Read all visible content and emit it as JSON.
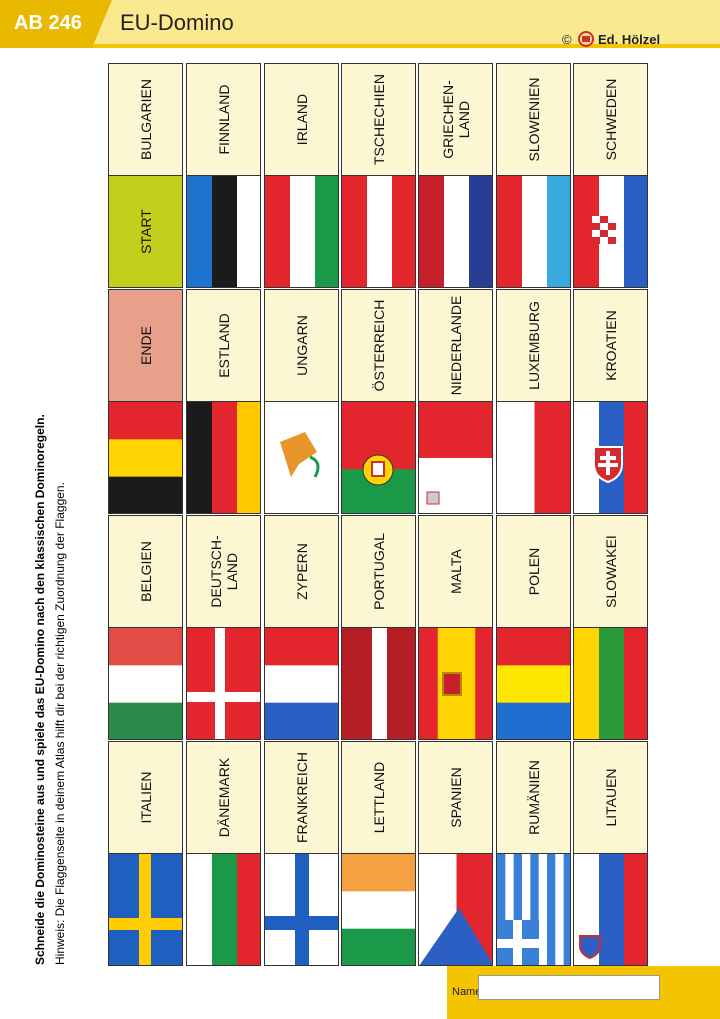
{
  "header": {
    "sheet_number": "AB 246",
    "title": "EU-Domino",
    "copyright": "©",
    "publisher": "Ed. Hölzel"
  },
  "instructions": [
    "Schneide die Dominosteine aus und spiele das EU-Domino nach den klassischen Dominoregeln.",
    "Hinweis: Die Flaggenseite in deinem Atlas hilft dir bei der richtigen Zuordnung der Flaggen."
  ],
  "start": "START",
  "rows": [
    [
      "BULGARIEN",
      "FINNLAND",
      "IRLAND",
      "TSCHECHIEN",
      "GRIECHEN-\nLAND",
      "SLOWENIEN",
      "SCHWEDEN"
    ],
    [
      "ENDE",
      "ESTLAND",
      "UNGARN",
      "ÖSTERREICH",
      "NIEDERLANDE",
      "LUXEMBURG",
      "KROATIEN"
    ],
    [
      "BELGIEN",
      "DEUTSCH-\nLAND",
      "ZYPERN",
      "PORTUGAL",
      "MALTA",
      "POLEN",
      "SLOWAKEI"
    ],
    [
      "ITALIEN",
      "DÄNEMARK",
      "FRANKREICH",
      "LETTLAND",
      "SPANIEN",
      "RUMÄNIEN",
      "LITAUEN"
    ]
  ],
  "footer": {
    "name_label": "Name:"
  }
}
